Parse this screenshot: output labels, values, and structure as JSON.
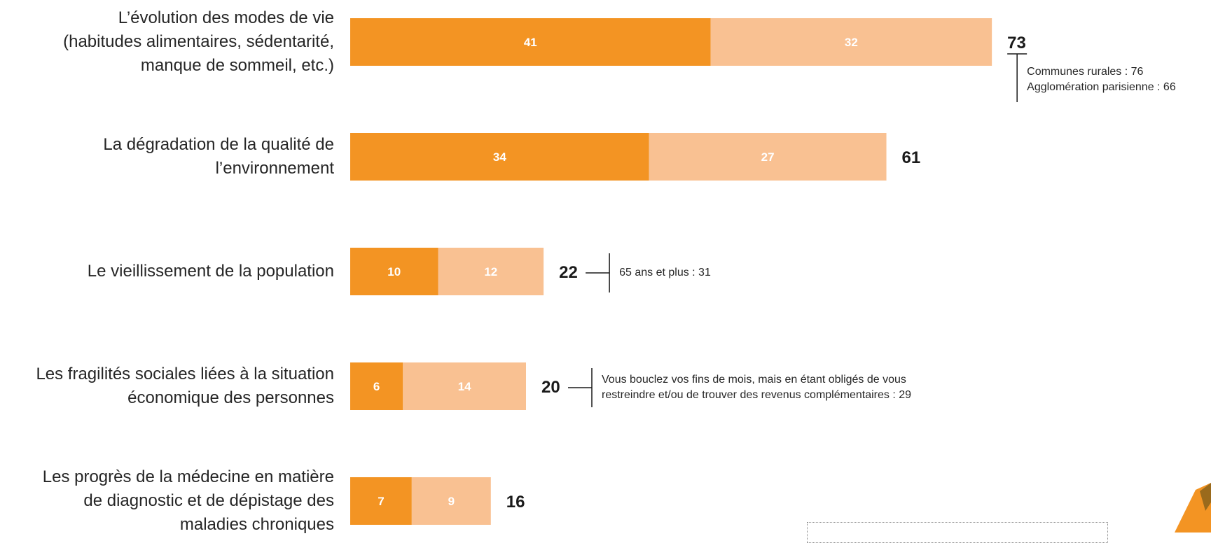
{
  "chart_data": {
    "type": "bar",
    "orientation": "horizontal",
    "stacked": true,
    "categories": [
      [
        "L’évolution des modes de vie",
        "(habitudes alimentaires, sédentarité,",
        "manque de sommeil, etc.)"
      ],
      [
        "La dégradation de la qualité de",
        "l’environnement"
      ],
      [
        "Le vieillissement de la population"
      ],
      [
        "Les fragilités sociales liées à la situation",
        "économique des personnes"
      ],
      [
        "Les progrès de la médecine en matière",
        "de diagnostic et de dépistage des",
        "maladies chroniques"
      ]
    ],
    "series": [
      {
        "values": [
          41,
          34,
          10,
          6,
          7
        ],
        "color": "#F39423"
      },
      {
        "values": [
          32,
          27,
          12,
          14,
          9
        ],
        "color": "#F9C192"
      }
    ],
    "totals": [
      73,
      61,
      22,
      20,
      16
    ],
    "xlim": [
      0,
      80
    ],
    "grid": false,
    "legend": "none",
    "callouts": [
      {
        "bar": 0,
        "lines": [
          "Communes rurales : 76",
          "Agglomération parisienne : 66"
        ]
      },
      {
        "bar": 2,
        "lines": [
          "65 ans et plus : 31"
        ]
      },
      {
        "bar": 3,
        "lines": [
          "Vous bouclez vos fins de mois, mais en étant obligés de vous",
          "restreindre et/ou de trouver des revenus complémentaires : 29"
        ]
      }
    ]
  },
  "colors": {
    "accent": "#F39423",
    "accent_light": "#F9C192",
    "text": "#262626"
  },
  "icons": {
    "corner_logo": "orange-logo-icon"
  }
}
